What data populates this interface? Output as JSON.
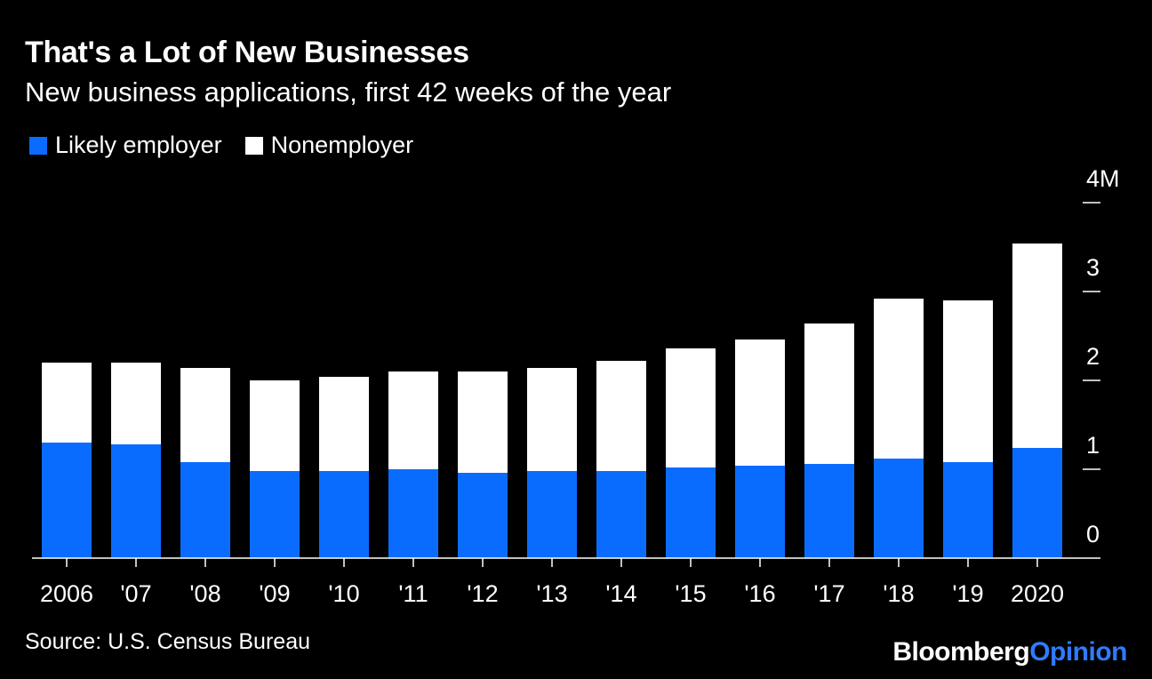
{
  "title": "That's a Lot of New Businesses",
  "subtitle": "New business applications, first 42 weeks of the year",
  "colors": {
    "background": "#000000",
    "employer": "#0a6cff",
    "nonemployer": "#ffffff",
    "text": "#ffffff",
    "brand_opinion": "#2f7bff"
  },
  "legend": [
    {
      "label": "Likely employer",
      "color": "#0a6cff"
    },
    {
      "label": "Nonemployer",
      "color": "#ffffff"
    }
  ],
  "chart_data": {
    "type": "bar",
    "stacked": true,
    "categories": [
      "2006",
      "'07",
      "'08",
      "'09",
      "'10",
      "'11",
      "'12",
      "'13",
      "'14",
      "'15",
      "'16",
      "'17",
      "'18",
      "'19",
      "2020"
    ],
    "series": [
      {
        "name": "Likely employer",
        "values": [
          1.3,
          1.28,
          1.08,
          0.98,
          0.98,
          1.0,
          0.96,
          0.98,
          0.98,
          1.02,
          1.04,
          1.06,
          1.12,
          1.08,
          1.24
        ]
      },
      {
        "name": "Nonemployer",
        "values": [
          0.9,
          0.92,
          1.06,
          1.02,
          1.06,
          1.1,
          1.14,
          1.16,
          1.24,
          1.34,
          1.42,
          1.58,
          1.8,
          1.82,
          2.3
        ]
      }
    ],
    "ylim": [
      0,
      4
    ],
    "y_ticks": [
      0,
      1,
      2,
      3,
      4
    ],
    "y_tick_labels": [
      "0",
      "1",
      "2",
      "3",
      "4M"
    ],
    "axis_position": "right",
    "legend_position": "top-left",
    "grid": false,
    "xlabel": "",
    "ylabel": ""
  },
  "footer": {
    "source": "Source: U.S. Census Bureau",
    "brand_main": "Bloomberg",
    "brand_accent": "Opinion"
  }
}
